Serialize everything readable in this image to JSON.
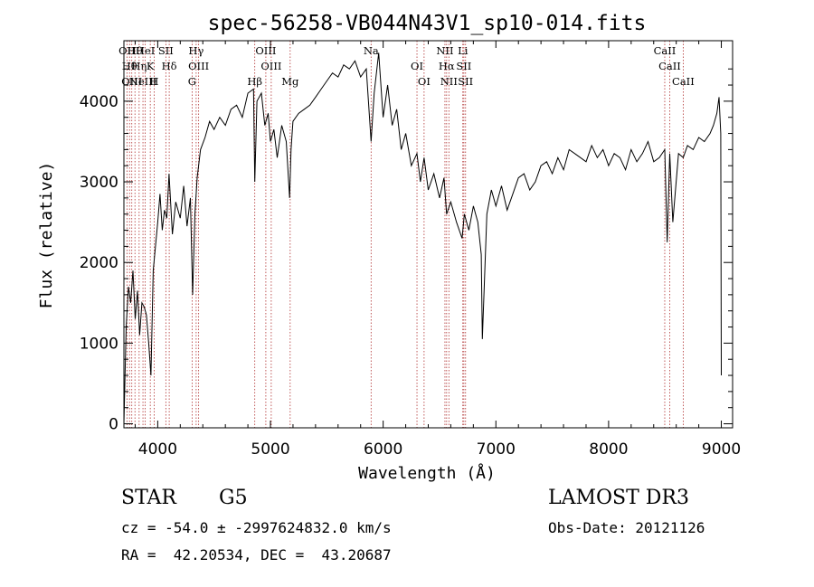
{
  "chart_data": {
    "type": "line",
    "title": "spec-56258-VB044N43V1_sp10-014.fits",
    "xlabel": "Wavelength (Å)",
    "ylabel": "Flux (relative)",
    "xlim": [
      3700,
      9100
    ],
    "ylim": [
      -50,
      4750
    ],
    "xticks": [
      4000,
      5000,
      6000,
      7000,
      8000,
      9000
    ],
    "yticks": [
      0,
      1000,
      2000,
      3000,
      4000
    ],
    "grid": false,
    "series": [
      {
        "name": "flux",
        "x": [
          3700,
          3720,
          3740,
          3760,
          3780,
          3800,
          3820,
          3840,
          3860,
          3880,
          3900,
          3920,
          3940,
          3960,
          3980,
          4000,
          4020,
          4040,
          4060,
          4080,
          4100,
          4130,
          4160,
          4200,
          4230,
          4260,
          4290,
          4310,
          4330,
          4350,
          4380,
          4420,
          4460,
          4500,
          4550,
          4600,
          4650,
          4700,
          4750,
          4800,
          4850,
          4861,
          4880,
          4920,
          4950,
          4980,
          5000,
          5030,
          5060,
          5100,
          5140,
          5170,
          5183,
          5200,
          5250,
          5300,
          5350,
          5400,
          5450,
          5500,
          5550,
          5600,
          5650,
          5700,
          5750,
          5800,
          5850,
          5893,
          5920,
          5960,
          6000,
          6040,
          6080,
          6120,
          6160,
          6200,
          6250,
          6300,
          6330,
          6363,
          6400,
          6450,
          6500,
          6540,
          6563,
          6600,
          6650,
          6700,
          6720,
          6760,
          6800,
          6840,
          6870,
          6880,
          6920,
          6960,
          7000,
          7050,
          7100,
          7150,
          7200,
          7250,
          7300,
          7350,
          7400,
          7450,
          7500,
          7550,
          7600,
          7650,
          7700,
          7750,
          7800,
          7850,
          7900,
          7950,
          8000,
          8050,
          8100,
          8150,
          8200,
          8250,
          8300,
          8350,
          8400,
          8450,
          8498,
          8520,
          8542,
          8570,
          8620,
          8662,
          8700,
          8750,
          8800,
          8850,
          8900,
          8930,
          8960,
          8980,
          8995,
          9000
        ],
        "values": [
          0,
          1200,
          1700,
          1500,
          1900,
          1300,
          1650,
          1100,
          1500,
          1450,
          1350,
          1000,
          600,
          1900,
          2200,
          2500,
          2850,
          2400,
          2650,
          2550,
          3100,
          2350,
          2750,
          2550,
          2950,
          2450,
          2800,
          1600,
          2600,
          3050,
          3400,
          3550,
          3750,
          3650,
          3800,
          3700,
          3900,
          3950,
          3800,
          4100,
          4150,
          3000,
          4000,
          4100,
          3700,
          3850,
          3500,
          3650,
          3300,
          3700,
          3500,
          2800,
          3400,
          3750,
          3850,
          3900,
          3950,
          4050,
          4150,
          4250,
          4350,
          4300,
          4450,
          4400,
          4500,
          4300,
          4400,
          3500,
          4100,
          4600,
          3800,
          4200,
          3700,
          3900,
          3400,
          3600,
          3200,
          3350,
          3000,
          3300,
          2900,
          3100,
          2800,
          3050,
          2600,
          2750,
          2500,
          2300,
          2600,
          2400,
          2700,
          2500,
          2100,
          1050,
          2600,
          2900,
          2700,
          2950,
          2650,
          2850,
          3050,
          3100,
          2900,
          3000,
          3200,
          3250,
          3100,
          3300,
          3150,
          3400,
          3350,
          3300,
          3250,
          3450,
          3300,
          3400,
          3200,
          3350,
          3300,
          3150,
          3400,
          3250,
          3350,
          3500,
          3250,
          3300,
          3400,
          2250,
          3350,
          2500,
          3350,
          3300,
          3450,
          3400,
          3550,
          3500,
          3600,
          3700,
          3850,
          4050,
          3600,
          600
        ]
      }
    ],
    "line_markers": [
      {
        "x": 3727,
        "label": "OII"
      },
      {
        "x": 3750,
        "label": "Hθ"
      },
      {
        "x": 3770,
        "label": "OIII"
      },
      {
        "x": 3798,
        "label": "Hθ"
      },
      {
        "x": 3835,
        "label": "Hη"
      },
      {
        "x": 3869,
        "label": "NeIII"
      },
      {
        "x": 3889,
        "label": "HeI"
      },
      {
        "x": 3934,
        "label": "K"
      },
      {
        "x": 3968,
        "label": "H"
      },
      {
        "x": 4072,
        "label": "SII"
      },
      {
        "x": 4102,
        "label": "Hδ"
      },
      {
        "x": 4305,
        "label": "G"
      },
      {
        "x": 4341,
        "label": "Hγ"
      },
      {
        "x": 4363,
        "label": "OIII"
      },
      {
        "x": 4861,
        "label": "Hβ"
      },
      {
        "x": 4959,
        "label": "OIII"
      },
      {
        "x": 5007,
        "label": "OIII"
      },
      {
        "x": 5175,
        "label": "Mg"
      },
      {
        "x": 5893,
        "label": "Na"
      },
      {
        "x": 6300,
        "label": "OI"
      },
      {
        "x": 6363,
        "label": "OI"
      },
      {
        "x": 6548,
        "label": "NII"
      },
      {
        "x": 6563,
        "label": "Hα"
      },
      {
        "x": 6583,
        "label": "NII"
      },
      {
        "x": 6707,
        "label": "Li"
      },
      {
        "x": 6716,
        "label": "SII"
      },
      {
        "x": 6731,
        "label": "SII"
      },
      {
        "x": 8498,
        "label": "CaII"
      },
      {
        "x": 8542,
        "label": "CaII"
      },
      {
        "x": 8662,
        "label": "CaII"
      }
    ]
  },
  "info": {
    "object_class": "STAR",
    "subclass": "G5",
    "survey": "LAMOST DR3",
    "redshift": "cz = -54.0 ± -2997624832.0 km/s",
    "obs_date": "Obs-Date: 20121126",
    "coordinates": "RA =  42.20534, DEC =  43.20687"
  },
  "colors": {
    "spectrum": "#000000",
    "marker": "#b03030",
    "background": "#ffffff"
  }
}
